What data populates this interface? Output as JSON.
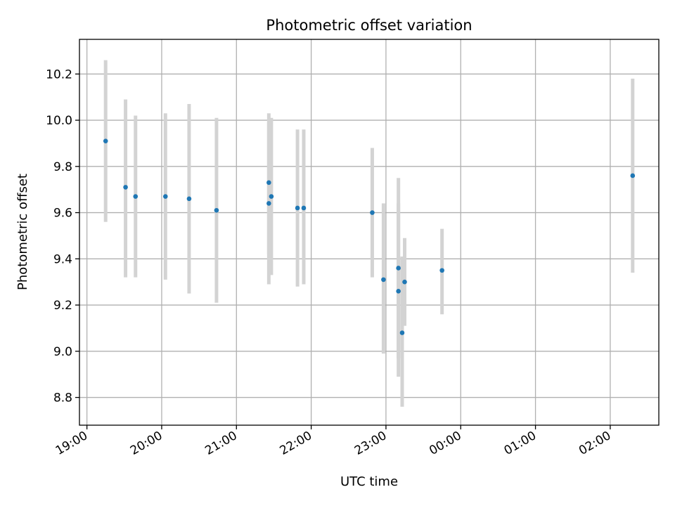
{
  "chart_data": {
    "type": "scatter",
    "title": "Photometric offset variation",
    "xlabel": "UTC time",
    "ylabel": "Photometric offset",
    "x_ticks": [
      "19:00",
      "20:00",
      "21:00",
      "22:00",
      "23:00",
      "00:00",
      "01:00",
      "02:00"
    ],
    "y_ticks": [
      "8.8",
      "9.0",
      "9.2",
      "9.4",
      "9.6",
      "9.8",
      "10.0",
      "10.2"
    ],
    "xlim": [
      "18:54",
      "02:39"
    ],
    "ylim": [
      8.68,
      10.35
    ],
    "grid": true,
    "point_color": "#1f77b4",
    "errorbar_color": "#d3d3d3",
    "points": [
      {
        "time": "19:15",
        "value": 9.91,
        "low": 9.56,
        "high": 10.26
      },
      {
        "time": "19:31",
        "value": 9.71,
        "low": 9.32,
        "high": 10.09
      },
      {
        "time": "19:39",
        "value": 9.67,
        "low": 9.32,
        "high": 10.02
      },
      {
        "time": "20:03",
        "value": 9.67,
        "low": 9.31,
        "high": 10.03
      },
      {
        "time": "20:22",
        "value": 9.66,
        "low": 9.25,
        "high": 10.07
      },
      {
        "time": "20:44",
        "value": 9.61,
        "low": 9.21,
        "high": 10.01
      },
      {
        "time": "21:26",
        "value": 9.73,
        "low": 9.42,
        "high": 10.03
      },
      {
        "time": "21:26",
        "value": 9.64,
        "low": 9.29,
        "high": 9.99
      },
      {
        "time": "21:28",
        "value": 9.67,
        "low": 9.33,
        "high": 10.01
      },
      {
        "time": "21:49",
        "value": 9.62,
        "low": 9.28,
        "high": 9.96
      },
      {
        "time": "21:54",
        "value": 9.62,
        "low": 9.29,
        "high": 9.96
      },
      {
        "time": "22:49",
        "value": 9.6,
        "low": 9.32,
        "high": 9.88
      },
      {
        "time": "22:58",
        "value": 9.31,
        "low": 8.99,
        "high": 9.64
      },
      {
        "time": "23:10",
        "value": 9.36,
        "low": 8.97,
        "high": 9.75
      },
      {
        "time": "23:10",
        "value": 9.26,
        "low": 8.89,
        "high": 9.64
      },
      {
        "time": "23:13",
        "value": 9.08,
        "low": 8.76,
        "high": 9.41
      },
      {
        "time": "23:15",
        "value": 9.3,
        "low": 9.11,
        "high": 9.49
      },
      {
        "time": "23:45",
        "value": 9.35,
        "low": 9.16,
        "high": 9.53
      },
      {
        "time": "02:18",
        "value": 9.76,
        "low": 9.34,
        "high": 10.18
      }
    ]
  }
}
